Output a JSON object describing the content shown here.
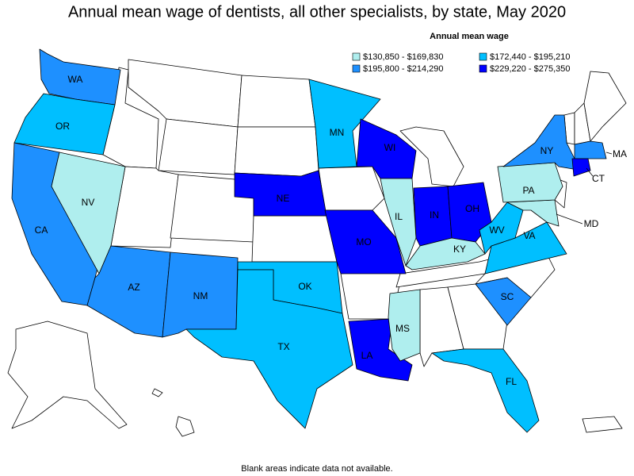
{
  "title": "Annual mean wage of dentists, all other specialists, by state, May 2020",
  "legend": {
    "title": "Annual mean wage",
    "items": [
      {
        "label": "$130,850 - $169,830",
        "color": "#afeeee"
      },
      {
        "label": "$172,440 - $195,210",
        "color": "#00bfff"
      },
      {
        "label": "$195,800 - $214,290",
        "color": "#1e90ff"
      },
      {
        "label": "$229,220 - $275,350",
        "color": "#0000ff"
      }
    ]
  },
  "states": [
    {
      "label": "WA",
      "color": "#1e90ff"
    },
    {
      "label": "OR",
      "color": "#00bfff"
    },
    {
      "label": "CA",
      "color": "#1e90ff"
    },
    {
      "label": "NV",
      "color": "#afeeee"
    },
    {
      "label": "AZ",
      "color": "#1e90ff"
    },
    {
      "label": "NM",
      "color": "#1e90ff"
    },
    {
      "label": "NE",
      "color": "#0000ff"
    },
    {
      "label": "OK",
      "color": "#00bfff"
    },
    {
      "label": "TX",
      "color": "#00bfff"
    },
    {
      "label": "MN",
      "color": "#00bfff"
    },
    {
      "label": "MO",
      "color": "#0000ff"
    },
    {
      "label": "LA",
      "color": "#0000ff"
    },
    {
      "label": "WI",
      "color": "#0000ff"
    },
    {
      "label": "IL",
      "color": "#afeeee"
    },
    {
      "label": "IN",
      "color": "#0000ff"
    },
    {
      "label": "OH",
      "color": "#0000ff"
    },
    {
      "label": "KY",
      "color": "#afeeee"
    },
    {
      "label": "MS",
      "color": "#afeeee"
    },
    {
      "label": "FL",
      "color": "#00bfff"
    },
    {
      "label": "SC",
      "color": "#1e90ff"
    },
    {
      "label": "VA",
      "color": "#00bfff"
    },
    {
      "label": "WV",
      "color": "#00bfff"
    },
    {
      "label": "MD",
      "color": "#afeeee"
    },
    {
      "label": "PA",
      "color": "#afeeee"
    },
    {
      "label": "NY",
      "color": "#1e90ff"
    },
    {
      "label": "MA",
      "color": "#1e90ff"
    },
    {
      "label": "CT",
      "color": "#0000ff"
    }
  ],
  "footnote": "Blank areas indicate data not available."
}
